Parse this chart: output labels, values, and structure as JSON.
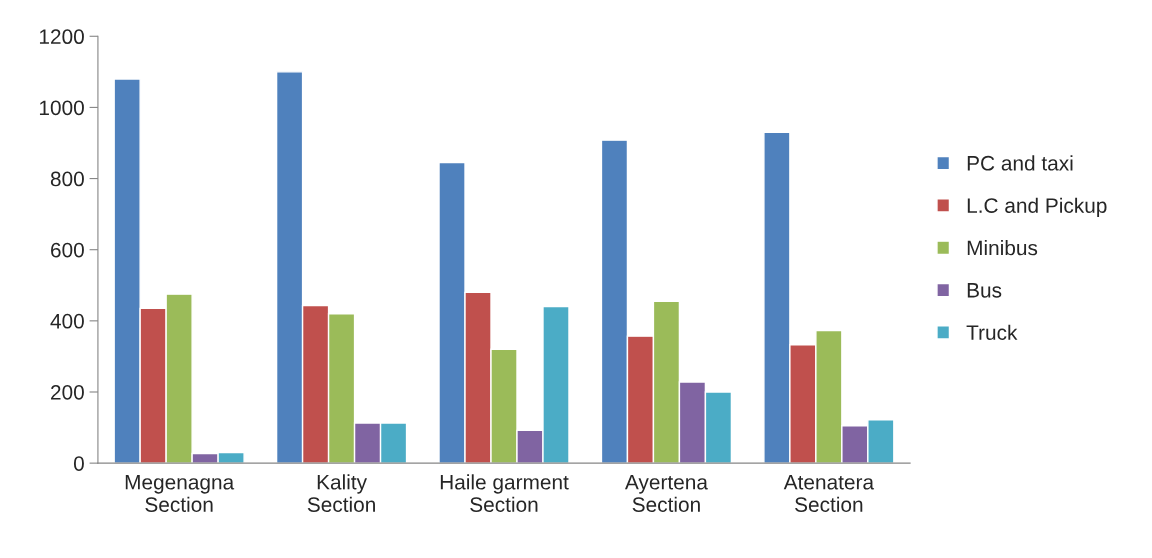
{
  "chart_data": {
    "type": "bar",
    "categories": [
      "Megenagna\nSection",
      "Kality\nSection",
      "Haile garment\nSection",
      "Ayertena\nSection",
      "Atenatera\nSection"
    ],
    "series": [
      {
        "name": "PC and taxi",
        "color": "#4f81bd",
        "values": [
          1080,
          1100,
          845,
          908,
          930
        ]
      },
      {
        "name": "L.C and Pickup",
        "color": "#c0504d",
        "values": [
          435,
          443,
          480,
          357,
          333
        ]
      },
      {
        "name": "Minibus",
        "color": "#9bbb59",
        "values": [
          475,
          420,
          320,
          455,
          373
        ]
      },
      {
        "name": "Bus",
        "color": "#8064a2",
        "values": [
          27,
          113,
          92,
          228,
          105
        ]
      },
      {
        "name": "Truck",
        "color": "#4bacc6",
        "values": [
          30,
          113,
          440,
          200,
          122
        ]
      }
    ],
    "ylim": [
      0,
      1200
    ],
    "yticks": [
      0,
      200,
      400,
      600,
      800,
      1000,
      1200
    ],
    "grid": false,
    "legend": "right"
  }
}
